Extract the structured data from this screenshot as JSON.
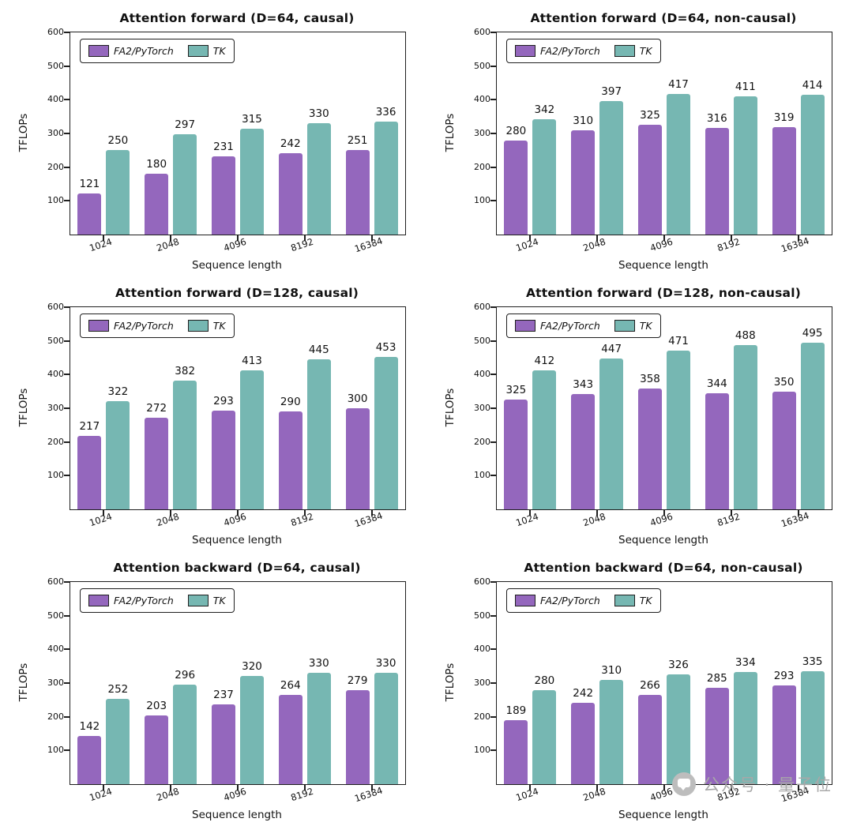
{
  "page": {
    "background": "#ffffff"
  },
  "series_colors": [
    "#9467bd",
    "#76b7b2"
  ],
  "axis": {
    "ylabel": "TFLOPs",
    "xlabel": "Sequence length"
  },
  "watermark": {
    "text": "公众号 · 量子位",
    "icon": "speech-bubble-icon",
    "color": "#a8a8a8"
  },
  "chart_data": [
    {
      "type": "bar",
      "title": "Attention forward (D=64, causal)",
      "categories": [
        "1024",
        "2048",
        "4096",
        "8192",
        "16384"
      ],
      "series": [
        {
          "name": "FA2/PyTorch",
          "values": [
            121,
            180,
            231,
            242,
            251
          ]
        },
        {
          "name": "TK",
          "values": [
            250,
            297,
            315,
            330,
            336
          ]
        }
      ],
      "xlabel": "Sequence length",
      "ylabel": "TFLOPs",
      "ylim": [
        0,
        600
      ],
      "yticks": [
        100,
        200,
        300,
        400,
        500,
        600
      ],
      "legend_position": "top-left",
      "grid": false
    },
    {
      "type": "bar",
      "title": "Attention forward (D=64, non-causal)",
      "categories": [
        "1024",
        "2048",
        "4096",
        "8192",
        "16384"
      ],
      "series": [
        {
          "name": "FA2/PyTorch",
          "values": [
            280,
            310,
            325,
            316,
            319
          ]
        },
        {
          "name": "TK",
          "values": [
            342,
            397,
            417,
            411,
            414
          ]
        }
      ],
      "xlabel": "Sequence length",
      "ylabel": "TFLOPs",
      "ylim": [
        0,
        600
      ],
      "yticks": [
        100,
        200,
        300,
        400,
        500,
        600
      ],
      "legend_position": "top-left",
      "grid": false
    },
    {
      "type": "bar",
      "title": "Attention forward (D=128, causal)",
      "categories": [
        "1024",
        "2048",
        "4096",
        "8192",
        "16384"
      ],
      "series": [
        {
          "name": "FA2/PyTorch",
          "values": [
            217,
            272,
            293,
            290,
            300
          ]
        },
        {
          "name": "TK",
          "values": [
            322,
            382,
            413,
            445,
            453
          ]
        }
      ],
      "xlabel": "Sequence length",
      "ylabel": "TFLOPs",
      "ylim": [
        0,
        600
      ],
      "yticks": [
        100,
        200,
        300,
        400,
        500,
        600
      ],
      "legend_position": "top-left",
      "grid": false
    },
    {
      "type": "bar",
      "title": "Attention forward (D=128, non-causal)",
      "categories": [
        "1024",
        "2048",
        "4096",
        "8192",
        "16384"
      ],
      "series": [
        {
          "name": "FA2/PyTorch",
          "values": [
            325,
            343,
            358,
            344,
            350
          ]
        },
        {
          "name": "TK",
          "values": [
            412,
            447,
            471,
            488,
            495
          ]
        }
      ],
      "xlabel": "Sequence length",
      "ylabel": "TFLOPs",
      "ylim": [
        0,
        600
      ],
      "yticks": [
        100,
        200,
        300,
        400,
        500,
        600
      ],
      "legend_position": "top-left",
      "grid": false
    },
    {
      "type": "bar",
      "title": "Attention backward (D=64, causal)",
      "categories": [
        "1024",
        "2048",
        "4096",
        "8192",
        "16384"
      ],
      "series": [
        {
          "name": "FA2/PyTorch",
          "values": [
            142,
            203,
            237,
            264,
            279
          ]
        },
        {
          "name": "TK",
          "values": [
            252,
            296,
            320,
            330,
            330
          ]
        }
      ],
      "xlabel": "Sequence length",
      "ylabel": "TFLOPs",
      "ylim": [
        0,
        600
      ],
      "yticks": [
        100,
        200,
        300,
        400,
        500,
        600
      ],
      "legend_position": "top-left",
      "grid": false
    },
    {
      "type": "bar",
      "title": "Attention backward (D=64, non-causal)",
      "categories": [
        "1024",
        "2048",
        "4096",
        "8192",
        "16384"
      ],
      "series": [
        {
          "name": "FA2/PyTorch",
          "values": [
            189,
            242,
            266,
            285,
            293
          ]
        },
        {
          "name": "TK",
          "values": [
            280,
            310,
            326,
            334,
            335
          ]
        }
      ],
      "xlabel": "Sequence length",
      "ylabel": "TFLOPs",
      "ylim": [
        0,
        600
      ],
      "yticks": [
        100,
        200,
        300,
        400,
        500,
        600
      ],
      "legend_position": "top-left",
      "grid": false
    }
  ]
}
